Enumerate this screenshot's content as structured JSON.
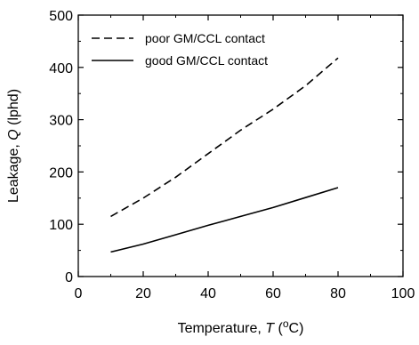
{
  "chart_data": {
    "type": "line",
    "xlabel": "Temperature, T (°C)",
    "xlabel_parts": {
      "prefix": "Temperature, ",
      "var": "T",
      "mid": " (",
      "sup": "o",
      "suffix": "C)"
    },
    "ylabel": "Leakage, Q (lphd)",
    "ylabel_parts": {
      "prefix": "Leakage, ",
      "var": "Q",
      "suffix": " (lphd)"
    },
    "xlim": [
      0,
      100
    ],
    "ylim": [
      0,
      500
    ],
    "xticks": [
      0,
      20,
      40,
      60,
      80,
      100
    ],
    "yticks": [
      0,
      100,
      200,
      300,
      400,
      500
    ],
    "xtick_labels": [
      "0",
      "20",
      "40",
      "60",
      "80",
      "100"
    ],
    "ytick_labels": [
      "0",
      "100",
      "200",
      "300",
      "400",
      "500"
    ],
    "grid": false,
    "legend_position": "top-left",
    "series": [
      {
        "name": "poor GM/CCL contact",
        "style": "dashed",
        "color": "#000000",
        "x": [
          10,
          20,
          30,
          40,
          50,
          60,
          70,
          80
        ],
        "y": [
          115,
          150,
          190,
          235,
          280,
          320,
          365,
          418
        ]
      },
      {
        "name": "good GM/CCL contact",
        "style": "solid",
        "color": "#000000",
        "x": [
          10,
          20,
          30,
          40,
          50,
          60,
          70,
          80
        ],
        "y": [
          47,
          62,
          80,
          98,
          115,
          132,
          151,
          170
        ]
      }
    ]
  }
}
